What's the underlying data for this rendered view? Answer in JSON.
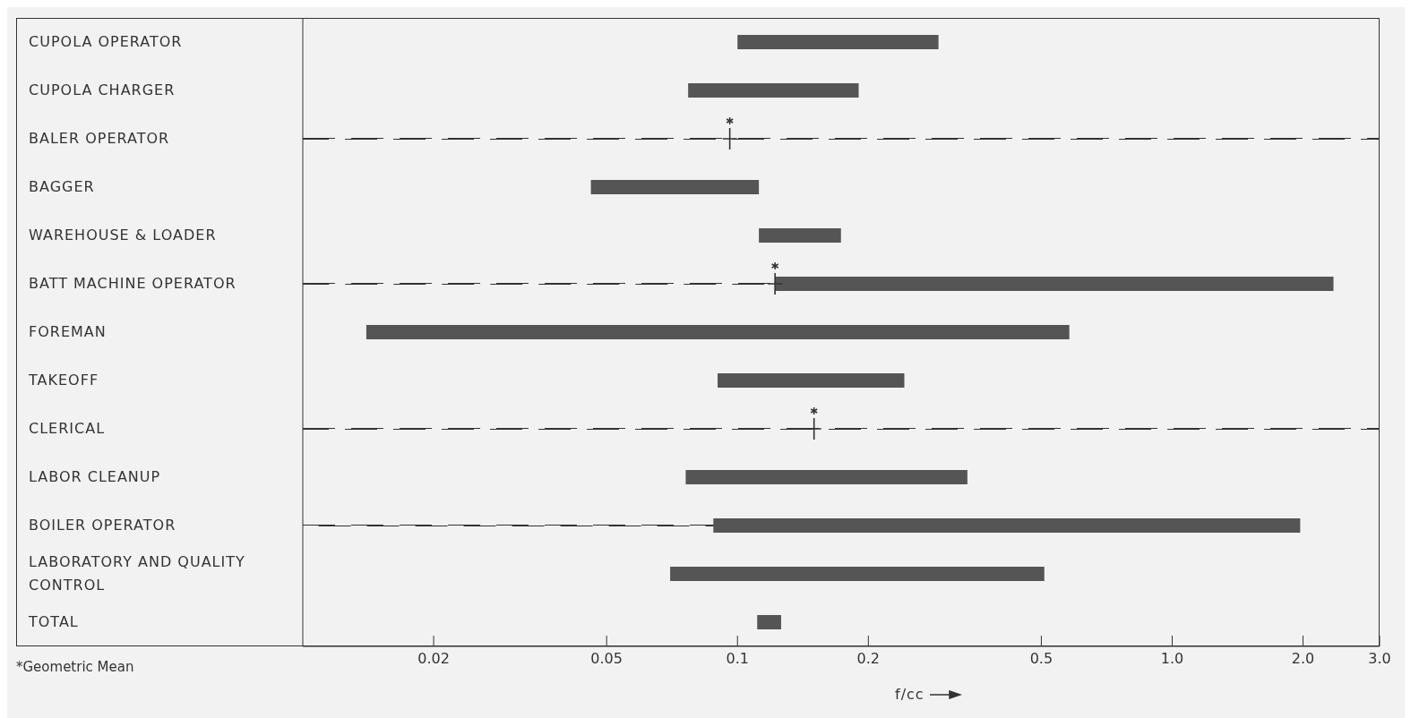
{
  "chart_data": {
    "type": "bar",
    "orientation": "horizontal",
    "log": "x",
    "xlabel": "f/cc",
    "annotations": [
      "*Geometric Mean"
    ],
    "categories": [
      "CUPOLA OPERATOR",
      "CUPOLA CHARGER",
      "BALER OPERATOR",
      "BAGGER",
      "WAREHOUSE & LOADER",
      "BATT MACHINE OPERATOR",
      "FOREMAN",
      "TAKEOFF",
      "CLERICAL",
      "LABOR CLEANUP",
      "BOILER OPERATOR",
      "LABORATORY AND QUALITY CONTROL",
      "TOTAL"
    ],
    "xlim": [
      0.01,
      3.0
    ],
    "grid": false,
    "legend": false,
    "xticks": [
      0.02,
      0.05,
      0.1,
      0.2,
      0.5,
      {
        "value": 1,
        "label": "1.0"
      },
      {
        "value": 2,
        "label": "2.0"
      },
      {
        "value": 3,
        "label": "3.0"
      }
    ],
    "series": [
      {
        "type": "bar",
        "color": "#555555",
        "base": [
          0.1,
          0.077,
          null,
          0.046,
          0.112,
          0.122,
          0.014,
          0.09,
          null,
          0.076,
          0.088,
          0.07,
          0.111
        ],
        "values": [
          0.19,
          0.113,
          null,
          0.066,
          0.061,
          2.228,
          0.566,
          0.152,
          null,
          0.262,
          1.882,
          0.438,
          0.015
        ]
      },
      {
        "type": "bar",
        "line_style": "dashed",
        "color": "#333333",
        "base": [
          null,
          null,
          0.01,
          null,
          null,
          0.01,
          null,
          null,
          0.01,
          null,
          0.01,
          null,
          null
        ],
        "values": [
          null,
          null,
          2.99,
          null,
          null,
          0.112,
          null,
          null,
          2.99,
          null,
          0.078,
          null,
          null
        ]
      },
      {
        "type": "scatter",
        "marker": "cross",
        "color": "#333333",
        "x": [
          "BALER OPERATOR",
          "BATT MACHINE OPERATOR",
          "CLERICAL"
        ],
        "values": [
          0.096,
          0.122,
          0.15
        ]
      }
    ]
  }
}
